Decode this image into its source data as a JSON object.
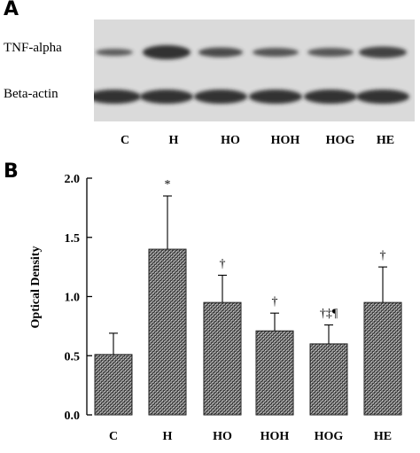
{
  "panel_a": {
    "label": "A",
    "rows": [
      "TNF-alpha",
      "Beta-actin"
    ],
    "lanes": [
      "C",
      "H",
      "HO",
      "HOH",
      "HOG",
      "HE"
    ],
    "band_colors": {
      "tnf": "#333333",
      "actin": "#2a2a2a",
      "background": "#dadada"
    }
  },
  "panel_b": {
    "label": "B"
  },
  "chart_data": {
    "type": "bar",
    "categories": [
      "C",
      "H",
      "HO",
      "HOH",
      "HOG",
      "HE"
    ],
    "series": [
      {
        "values": [
          0.51,
          1.4,
          0.95,
          0.71,
          0.6,
          0.95
        ],
        "errors": [
          0.18,
          0.45,
          0.23,
          0.15,
          0.16,
          0.3
        ]
      }
    ],
    "annotations": [
      "",
      "*",
      "†",
      "†",
      "†‡¶",
      "†"
    ],
    "title": "",
    "xlabel": "",
    "ylabel": "Optical Density",
    "ylim": [
      0,
      2.0
    ],
    "yticks": [
      "0.0",
      "0.5",
      "1.0",
      "1.5",
      "2.0"
    ],
    "bar_fill": "crosshatch-gray",
    "grid": false
  }
}
